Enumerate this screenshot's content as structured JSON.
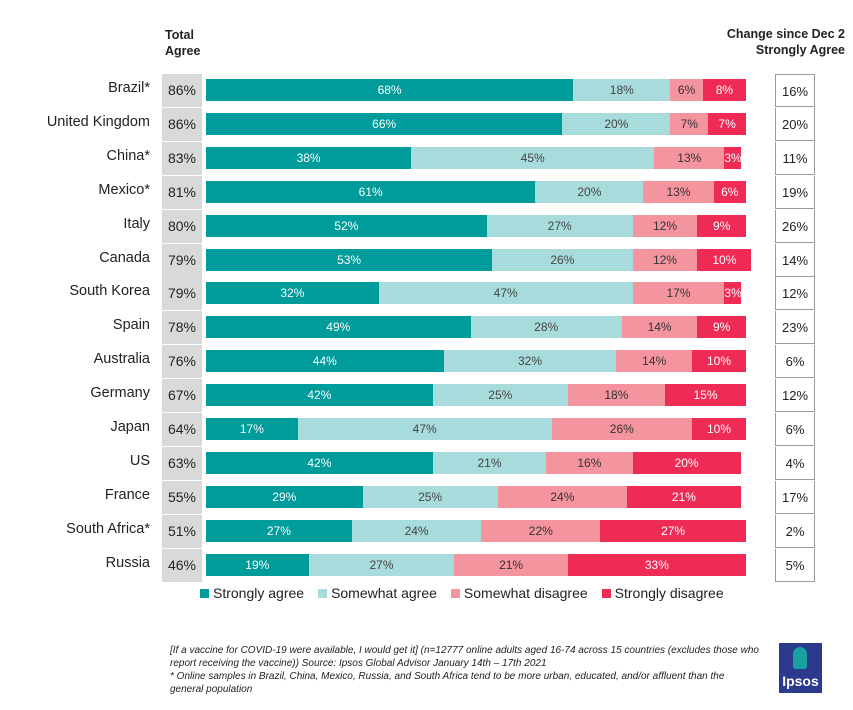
{
  "chart_data": {
    "type": "bar",
    "orientation": "horizontal-stacked",
    "total_header": "Total\nAgree",
    "change_header": "Change since Dec 2\nStrongly Agree",
    "series_names": [
      "Strongly agree",
      "Somewhat agree",
      "Somewhat disagree",
      "Strongly disagree"
    ],
    "colors": [
      "#009b9b",
      "#a8dcdc",
      "#f4949f",
      "#ee2b55"
    ],
    "text_colors": [
      "#ffffff",
      "#444444",
      "#333333",
      "#ffffff"
    ],
    "rows": [
      {
        "country": "Brazil*",
        "total": "86%",
        "values": [
          68,
          18,
          6,
          8
        ],
        "change": "16%"
      },
      {
        "country": "United Kingdom",
        "total": "86%",
        "values": [
          66,
          20,
          7,
          7
        ],
        "change": "20%"
      },
      {
        "country": "China*",
        "total": "83%",
        "values": [
          38,
          45,
          13,
          3
        ],
        "change": "11%"
      },
      {
        "country": "Mexico*",
        "total": "81%",
        "values": [
          61,
          20,
          13,
          6
        ],
        "change": "19%"
      },
      {
        "country": "Italy",
        "total": "80%",
        "values": [
          52,
          27,
          12,
          9
        ],
        "change": "26%"
      },
      {
        "country": "Canada",
        "total": "79%",
        "values": [
          53,
          26,
          12,
          10
        ],
        "change": "14%"
      },
      {
        "country": "South Korea",
        "total": "79%",
        "values": [
          32,
          47,
          17,
          3
        ],
        "change": "12%"
      },
      {
        "country": "Spain",
        "total": "78%",
        "values": [
          49,
          28,
          14,
          9
        ],
        "change": "23%"
      },
      {
        "country": "Australia",
        "total": "76%",
        "values": [
          44,
          32,
          14,
          10
        ],
        "change": "6%"
      },
      {
        "country": "Germany",
        "total": "67%",
        "values": [
          42,
          25,
          18,
          15
        ],
        "change": "12%"
      },
      {
        "country": "Japan",
        "total": "64%",
        "values": [
          17,
          47,
          26,
          10
        ],
        "change": "6%"
      },
      {
        "country": "US",
        "total": "63%",
        "values": [
          42,
          21,
          16,
          20
        ],
        "change": "4%"
      },
      {
        "country": "France",
        "total": "55%",
        "values": [
          29,
          25,
          24,
          21
        ],
        "change": "17%"
      },
      {
        "country": "South Africa*",
        "total": "51%",
        "values": [
          27,
          24,
          22,
          27
        ],
        "change": "2%"
      },
      {
        "country": "Russia",
        "total": "46%",
        "values": [
          19,
          27,
          21,
          33
        ],
        "change": "5%"
      }
    ],
    "xlim": [
      0,
      100
    ]
  },
  "footnote": {
    "line1": "[If a vaccine for COVID-19 were available, I would get it] (n=12777 online adults aged 16-74 across 15 countries (excludes those who report receiving the vaccine)) Source: Ipsos Global Advisor January 14th – 17th 2021",
    "line2": "* Online samples in Brazil, China, Mexico, Russia, and South Africa tend to be more urban, educated, and/or affluent than the general population"
  },
  "logo": "Ipsos"
}
